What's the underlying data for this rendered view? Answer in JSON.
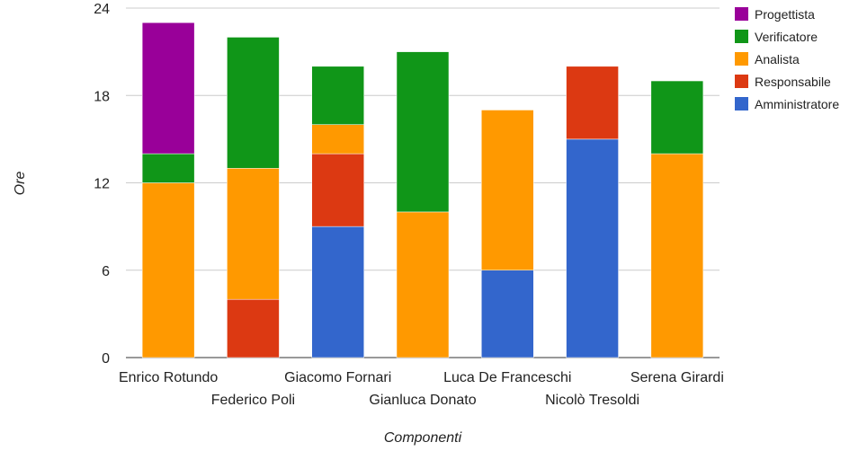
{
  "chart_data": {
    "type": "bar",
    "stacked": true,
    "title": "",
    "xlabel": "Componenti",
    "ylabel": "Ore",
    "ylim": [
      0,
      24
    ],
    "yticks": [
      0,
      6,
      12,
      18,
      24
    ],
    "grid": true,
    "legend_position": "right",
    "categories": [
      "Enrico Rotundo",
      "Federico Poli",
      "Giacomo Fornari",
      "Gianluca Donato",
      "Luca De Franceschi",
      "Nicolò Tresoldi",
      "Serena Girardi"
    ],
    "series": [
      {
        "name": "Amministratore",
        "color": "#3366cc",
        "values": [
          0,
          0,
          9,
          0,
          6,
          15,
          0
        ]
      },
      {
        "name": "Responsabile",
        "color": "#dc3912",
        "values": [
          0,
          4,
          5,
          0,
          0,
          5,
          0
        ]
      },
      {
        "name": "Analista",
        "color": "#ff9900",
        "values": [
          12,
          9,
          2,
          10,
          11,
          0,
          14
        ]
      },
      {
        "name": "Verificatore",
        "color": "#109618",
        "values": [
          2,
          9,
          4,
          11,
          0,
          0,
          5
        ]
      },
      {
        "name": "Progettista",
        "color": "#990099",
        "values": [
          9,
          0,
          0,
          0,
          0,
          0,
          0
        ]
      }
    ],
    "legend_order": [
      "Progettista",
      "Verificatore",
      "Analista",
      "Responsabile",
      "Amministratore"
    ]
  }
}
